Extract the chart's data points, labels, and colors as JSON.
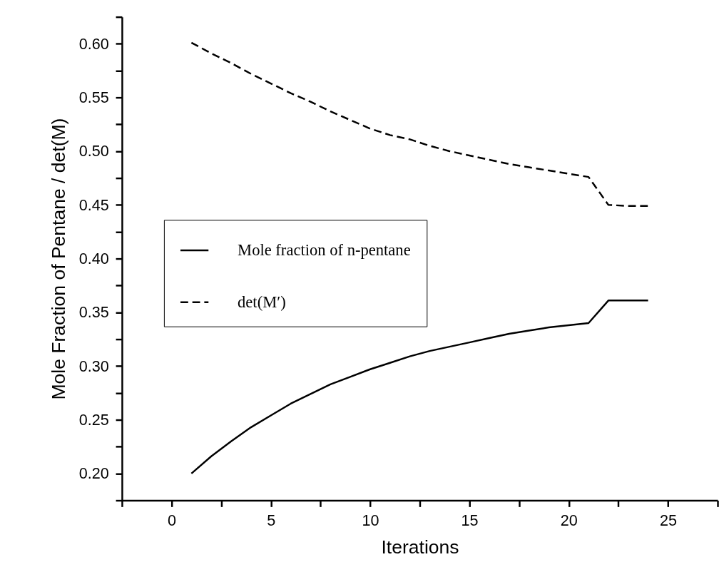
{
  "chart_data": {
    "type": "line",
    "xlabel": "Iterations",
    "ylabel": "Mole Fraction of Pentane / det(M)",
    "x": [
      1,
      2,
      3,
      4,
      5,
      6,
      7,
      8,
      9,
      10,
      11,
      12,
      13,
      14,
      15,
      16,
      17,
      18,
      19,
      20,
      21,
      22,
      23,
      24
    ],
    "series": [
      {
        "name": "Mole fraction of n-pentane",
        "color": "#000000",
        "line_style": "solid",
        "values": [
          0.2,
          0.216,
          0.23,
          0.243,
          0.254,
          0.265,
          0.274,
          0.283,
          0.29,
          0.297,
          0.303,
          0.309,
          0.314,
          0.318,
          0.322,
          0.326,
          0.33,
          0.333,
          0.336,
          0.338,
          0.34,
          0.361,
          0.361,
          0.361
        ]
      },
      {
        "name": "det(M′)",
        "color": "#000000",
        "line_style": "dashed",
        "values": [
          0.601,
          0.591,
          0.582,
          0.572,
          0.563,
          0.554,
          0.546,
          0.537,
          0.529,
          0.521,
          0.515,
          0.511,
          0.505,
          0.5,
          0.496,
          0.492,
          0.488,
          0.485,
          0.482,
          0.479,
          0.476,
          0.45,
          0.449,
          0.449
        ]
      }
    ],
    "xlim": [
      -2.5,
      27.5
    ],
    "xticks": [
      {
        "value": -2.5,
        "label": null
      },
      0,
      {
        "value": 2.5,
        "label": null
      },
      5,
      {
        "value": 7.5,
        "label": null
      },
      10,
      {
        "value": 12.5,
        "label": null
      },
      15,
      {
        "value": 17.5,
        "label": null
      },
      20,
      {
        "value": 22.5,
        "label": null
      },
      25,
      {
        "value": 27.5,
        "label": null
      }
    ],
    "ylim": [
      0.175,
      0.625
    ],
    "yticks": [
      {
        "value": 0.175,
        "label": null
      },
      {
        "value": 0.2,
        "label": "0.20"
      },
      {
        "value": 0.225,
        "label": null
      },
      {
        "value": 0.25,
        "label": "0.25"
      },
      {
        "value": 0.275,
        "label": null
      },
      {
        "value": 0.3,
        "label": "0.30"
      },
      {
        "value": 0.325,
        "label": null
      },
      {
        "value": 0.35,
        "label": "0.35"
      },
      {
        "value": 0.375,
        "label": null
      },
      {
        "value": 0.4,
        "label": "0.40"
      },
      {
        "value": 0.425,
        "label": null
      },
      {
        "value": 0.45,
        "label": "0.45"
      },
      {
        "value": 0.475,
        "label": null
      },
      {
        "value": 0.5,
        "label": "0.50"
      },
      {
        "value": 0.525,
        "label": null
      },
      {
        "value": 0.55,
        "label": "0.55"
      },
      {
        "value": 0.575,
        "label": null
      },
      {
        "value": 0.6,
        "label": "0.60"
      },
      {
        "value": 0.625,
        "label": null
      }
    ],
    "grid": false,
    "legend": "left",
    "marker": "none"
  }
}
